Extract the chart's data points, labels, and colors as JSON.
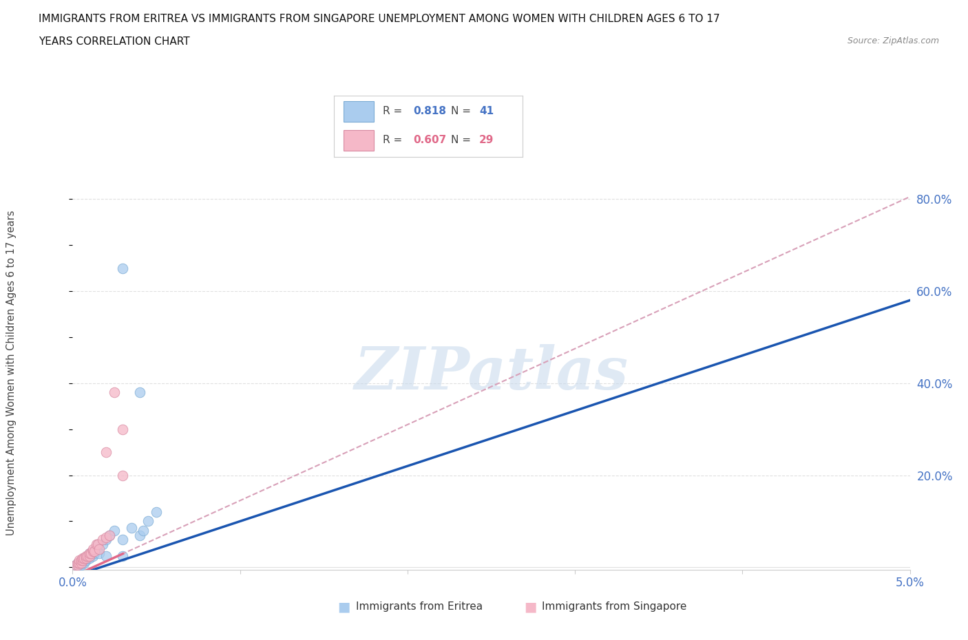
{
  "title_line1": "IMMIGRANTS FROM ERITREA VS IMMIGRANTS FROM SINGAPORE UNEMPLOYMENT AMONG WOMEN WITH CHILDREN AGES 6 TO 17",
  "title_line2": "YEARS CORRELATION CHART",
  "source": "Source: ZipAtlas.com",
  "ylabel": "Unemployment Among Women with Children Ages 6 to 17 years",
  "xlim": [
    0.0,
    0.05
  ],
  "ylim": [
    -0.005,
    0.85
  ],
  "background_color": "#ffffff",
  "grid_color": "#e0e0e0",
  "watermark": "ZIPatlas",
  "watermark_color": "#c5d8eb",
  "eritrea_color": "#aaccee",
  "eritrea_edge_color": "#7aaad4",
  "singapore_color": "#f5b8c8",
  "singapore_edge_color": "#d888a0",
  "trendline1_color": "#1a55b0",
  "trendline2_color": "#e06888",
  "trendline_dashed_color": "#d8a0b8",
  "legend_R1": "0.818",
  "legend_N1": "41",
  "legend_R2": "0.607",
  "legend_N2": "29",
  "eritrea_label": "Immigrants from Eritrea",
  "singapore_label": "Immigrants from Singapore",
  "trend1_slope": 12.0,
  "trend1_intercept": -0.02,
  "trend2_slope": 16.5,
  "trend2_intercept": -0.02,
  "trend2_solid_end": 0.003,
  "eritrea_x": [
    0.0002,
    0.0003,
    0.0003,
    0.0004,
    0.0004,
    0.0005,
    0.0005,
    0.0005,
    0.0006,
    0.0006,
    0.0007,
    0.0007,
    0.0008,
    0.0008,
    0.0009,
    0.0009,
    0.001,
    0.001,
    0.001,
    0.0011,
    0.0012,
    0.0012,
    0.0013,
    0.0014,
    0.0015,
    0.0015,
    0.0016,
    0.0018,
    0.002,
    0.002,
    0.0022,
    0.0025,
    0.003,
    0.003,
    0.0035,
    0.004,
    0.0042,
    0.0045,
    0.005,
    0.004,
    0.003
  ],
  "eritrea_y": [
    0.005,
    0.005,
    0.01,
    0.005,
    0.01,
    0.005,
    0.01,
    0.015,
    0.01,
    0.015,
    0.01,
    0.02,
    0.015,
    0.02,
    0.02,
    0.025,
    0.02,
    0.025,
    0.03,
    0.03,
    0.025,
    0.035,
    0.03,
    0.04,
    0.04,
    0.05,
    0.03,
    0.05,
    0.06,
    0.025,
    0.07,
    0.08,
    0.06,
    0.025,
    0.085,
    0.07,
    0.08,
    0.1,
    0.12,
    0.38,
    0.65
  ],
  "singapore_x": [
    0.0002,
    0.0003,
    0.0003,
    0.0004,
    0.0004,
    0.0005,
    0.0005,
    0.0006,
    0.0006,
    0.0007,
    0.0008,
    0.0008,
    0.0009,
    0.001,
    0.001,
    0.0011,
    0.0012,
    0.0012,
    0.0013,
    0.0014,
    0.0015,
    0.0016,
    0.0018,
    0.002,
    0.002,
    0.0022,
    0.0025,
    0.003,
    0.003
  ],
  "singapore_y": [
    0.005,
    0.005,
    0.01,
    0.01,
    0.015,
    0.01,
    0.015,
    0.015,
    0.02,
    0.02,
    0.02,
    0.025,
    0.025,
    0.025,
    0.03,
    0.03,
    0.035,
    0.04,
    0.035,
    0.05,
    0.05,
    0.04,
    0.06,
    0.065,
    0.25,
    0.07,
    0.38,
    0.2,
    0.3
  ]
}
